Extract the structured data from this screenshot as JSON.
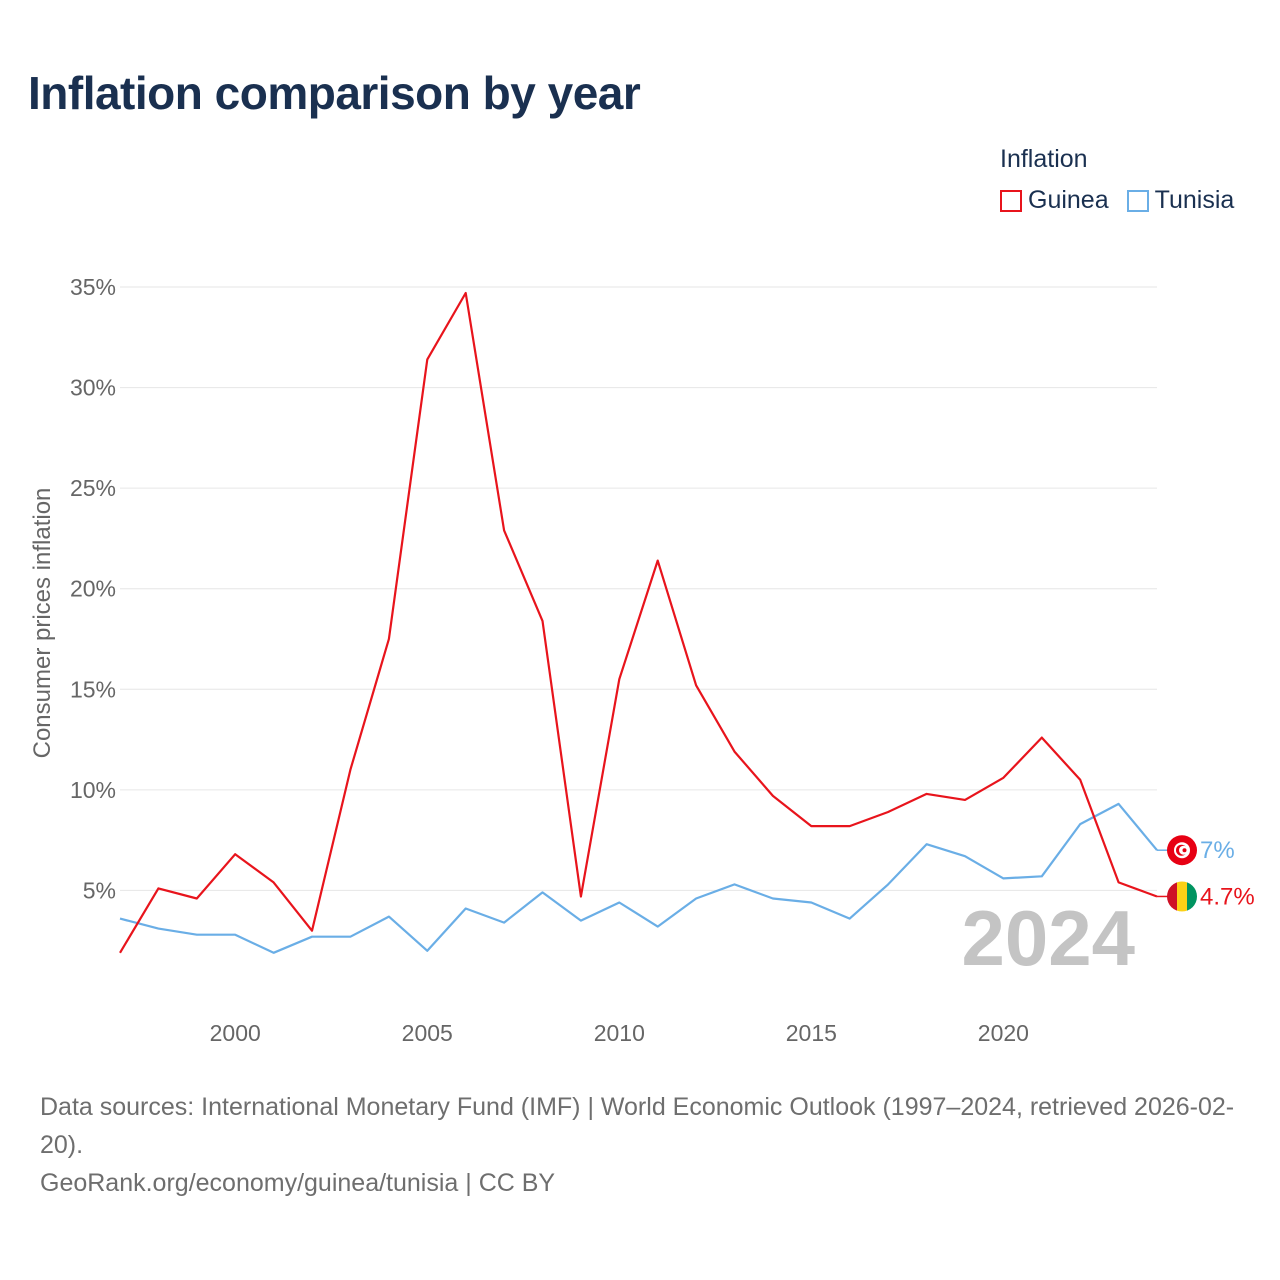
{
  "page": {
    "title": "Inflation comparison by year",
    "footer_sources": "Data sources: International Monetary Fund (IMF) | World Economic Outlook (1997–2024, retrieved 2026-02-20).",
    "footer_link": "GeoRank.org/economy/guinea/tunisia | CC BY"
  },
  "legend": {
    "title": "Inflation",
    "items": [
      {
        "label": "Guinea",
        "color": "#e8141c"
      },
      {
        "label": "Tunisia",
        "color": "#6aaee6"
      }
    ]
  },
  "chart_data": {
    "type": "line",
    "title": "Inflation comparison by year",
    "xlabel": "",
    "ylabel": "Consumer prices inflation",
    "xlim": [
      1997,
      2024
    ],
    "ylim": [
      0,
      35
    ],
    "y_ticks": [
      5,
      10,
      15,
      20,
      25,
      30,
      35
    ],
    "y_tick_labels": [
      "5%",
      "10%",
      "15%",
      "20%",
      "25%",
      "30%",
      "35%"
    ],
    "x_ticks": [
      2000,
      2005,
      2010,
      2015,
      2020
    ],
    "x_tick_labels": [
      "2000",
      "2005",
      "2010",
      "2015",
      "2020"
    ],
    "watermark_year": "2024",
    "x": [
      1997,
      1998,
      1999,
      2000,
      2001,
      2002,
      2003,
      2004,
      2005,
      2006,
      2007,
      2008,
      2009,
      2010,
      2011,
      2012,
      2013,
      2014,
      2015,
      2016,
      2017,
      2018,
      2019,
      2020,
      2021,
      2022,
      2023,
      2024
    ],
    "series": [
      {
        "name": "Guinea",
        "color": "#e8141c",
        "end_label": "4.7%",
        "values": [
          1.9,
          5.1,
          4.6,
          6.8,
          5.4,
          3.0,
          11.0,
          17.5,
          31.4,
          34.7,
          22.9,
          18.4,
          4.7,
          15.5,
          21.4,
          15.2,
          11.9,
          9.7,
          8.2,
          8.2,
          8.9,
          9.8,
          9.5,
          10.6,
          12.6,
          10.5,
          5.4,
          4.7
        ]
      },
      {
        "name": "Tunisia",
        "color": "#6aaee6",
        "end_label": "7%",
        "values": [
          3.6,
          3.1,
          2.8,
          2.8,
          1.9,
          2.7,
          2.7,
          3.7,
          2.0,
          4.1,
          3.4,
          4.9,
          3.5,
          4.4,
          3.2,
          4.6,
          5.3,
          4.6,
          4.4,
          3.6,
          5.3,
          7.3,
          6.7,
          5.6,
          5.7,
          8.3,
          9.3,
          7.0
        ]
      }
    ]
  }
}
